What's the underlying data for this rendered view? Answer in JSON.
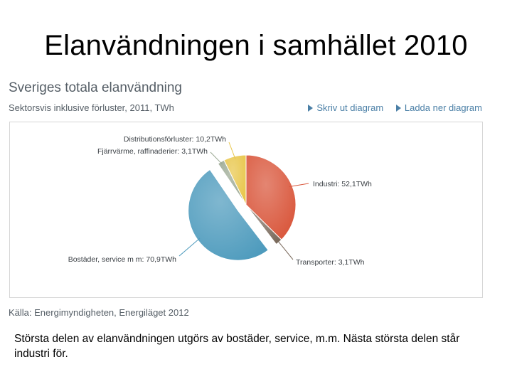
{
  "slide": {
    "title": "Elanvändningen i samhället 2010",
    "caption": "Största delen av elanvändningen  utgörs av bostäder, service, m.m. Nästa största delen står industri för."
  },
  "panel": {
    "title": "Sveriges totala elanvändning",
    "subtitle": "Sektorsvis inklusive förluster, 2011, TWh",
    "links": [
      {
        "label": "Skriv ut diagram",
        "icon": "arrow-right-icon"
      },
      {
        "label": "Ladda ner diagram",
        "icon": "arrow-right-icon"
      }
    ],
    "source": "Källa: Energimyndigheten, Energiläget 2012"
  },
  "chart_data": {
    "type": "pie",
    "unit": "TWh",
    "slices": [
      {
        "name": "Industri",
        "value": 52.1,
        "label": "Industri: 52,1TWh",
        "color": "#d9563b"
      },
      {
        "name": "Transporter",
        "value": 3.1,
        "label": "Transporter: 3,1TWh",
        "color": "#7a6a5c"
      },
      {
        "name": "Bostäder, service m m",
        "value": 70.9,
        "label": "Bostäder, service m m: 70,9TWh",
        "color": "#4e9bbd"
      },
      {
        "name": "Fjärrvärme, raffinaderier",
        "value": 3.1,
        "label": "Fjärrvärme, raffinaderier: 3,1TWh",
        "color": "#9aa892"
      },
      {
        "name": "Distributionsförluster",
        "value": 10.2,
        "label": "Distributionsförluster: 10,2TWh",
        "color": "#e8c64a"
      }
    ],
    "exploded": "Bostäder, service m m"
  }
}
